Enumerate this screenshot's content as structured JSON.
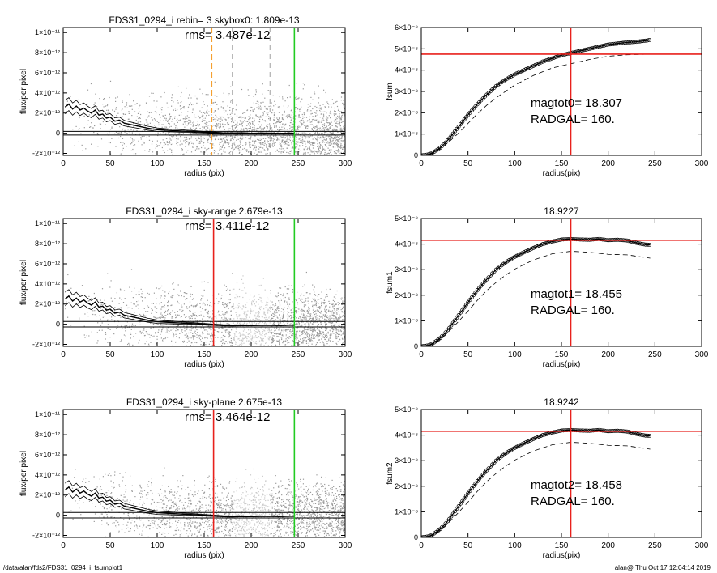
{
  "footer": {
    "left": "/data/alan/fds2/FDS31_0294_i_fsumplot1",
    "right": "alan@  Thu Oct 17 12:04:14 2019"
  },
  "colors": {
    "scatter": "#9a9a9a",
    "scatter_light": "#c8c8c8",
    "profile": "#000000",
    "red": "#e8211c",
    "green": "#22cc22",
    "orange": "#f5a031"
  },
  "chart_data": [
    {
      "type": "scatter",
      "panel": "left-1",
      "title": "FDS31_0294_i rebin= 3    skybox0:  1.809e-13",
      "annotation": "rms= 3.487e-12",
      "xlabel": "radius (pix)",
      "ylabel": "flux/per pixel",
      "xlim": [
        0,
        300
      ],
      "ylim": [
        -2.2e-12,
        1.05e-11
      ],
      "xticks": [
        0,
        50,
        100,
        150,
        200,
        250,
        300
      ],
      "yticks": [
        -2e-12,
        0,
        2e-12,
        4e-12,
        6e-12,
        8e-12,
        1e-11
      ],
      "yticklabels": [
        "-2×10⁻¹²",
        "0",
        "2×10⁻¹²",
        "4×10⁻¹²",
        "6×10⁻¹²",
        "8×10⁻¹²",
        "1×10⁻¹¹"
      ],
      "hlines": [
        1.8e-13,
        -1.8e-13
      ],
      "vlines": [
        {
          "x": 158,
          "color": "orange",
          "style": "dashed"
        },
        {
          "x": 180,
          "color": "gray",
          "style": "dashed"
        },
        {
          "x": 220,
          "color": "gray",
          "style": "dashed"
        },
        {
          "x": 246,
          "color": "green",
          "style": "solid"
        }
      ],
      "profile_r": [
        2,
        6,
        10,
        14,
        18,
        22,
        26,
        30,
        34,
        38,
        42,
        46,
        50,
        55,
        60,
        65,
        70,
        75,
        80,
        90,
        100,
        110,
        120,
        130,
        140,
        150,
        160,
        170,
        180,
        190,
        200,
        210,
        220,
        230,
        240,
        246
      ],
      "profile_f": [
        2.6e-12,
        2.9e-12,
        2.4e-12,
        2.7e-12,
        2.3e-12,
        2.5e-12,
        2.2e-12,
        2e-12,
        2.3e-12,
        1.8e-12,
        1.9e-12,
        1.5e-12,
        1.6e-12,
        1.2e-12,
        1.3e-12,
        1e-12,
        9e-13,
        8e-13,
        7e-13,
        5e-13,
        3.5e-13,
        3e-13,
        2.5e-13,
        2e-13,
        1.5e-13,
        1e-13,
        5e-14,
        0.0,
        0.0,
        2e-14,
        -2e-14,
        0.0,
        0.0,
        -2e-14,
        0.0,
        0.0
      ],
      "profile_err": 7e-13,
      "scatter_spread": 3.5e-12,
      "scatter_light_ranges": []
    },
    {
      "type": "line",
      "panel": "right-1",
      "title": "",
      "annotation_lines": [
        "magtot0=  18.307",
        "RADGAL=     160."
      ],
      "xlabel": "radius(pix)",
      "ylabel": "fsum",
      "xlim": [
        0,
        300
      ],
      "ylim": [
        0,
        6e-08
      ],
      "xticks": [
        0,
        50,
        100,
        150,
        200,
        250,
        300
      ],
      "yticks": [
        0,
        1e-08,
        2e-08,
        3e-08,
        4e-08,
        5e-08,
        6e-08
      ],
      "yticklabels": [
        "0",
        "1×10⁻⁸",
        "2×10⁻⁸",
        "3×10⁻⁸",
        "4×10⁻⁸",
        "5×10⁻⁸",
        "6×10⁻⁸"
      ],
      "vline": 160,
      "hline": 4.75e-08,
      "curve_r": [
        0,
        5,
        10,
        15,
        20,
        25,
        30,
        40,
        50,
        60,
        70,
        80,
        90,
        100,
        110,
        120,
        130,
        140,
        150,
        160,
        170,
        180,
        190,
        200,
        210,
        220,
        230,
        240,
        245
      ],
      "curve_f": [
        0,
        2e-10,
        8e-10,
        2e-09,
        3.5e-09,
        5.5e-09,
        8e-09,
        1.35e-08,
        1.9e-08,
        2.4e-08,
        2.85e-08,
        3.25e-08,
        3.55e-08,
        3.8e-08,
        4e-08,
        4.2e-08,
        4.4e-08,
        4.55e-08,
        4.7e-08,
        4.8e-08,
        4.9e-08,
        5e-08,
        5.1e-08,
        5.2e-08,
        5.25e-08,
        5.3e-08,
        5.33e-08,
        5.38e-08,
        5.42e-08
      ],
      "dashed_r": [
        0,
        10,
        20,
        30,
        40,
        50,
        60,
        70,
        80,
        90,
        100,
        120,
        140,
        160,
        180,
        200,
        220,
        245
      ],
      "dashed_f": [
        0,
        5e-10,
        3e-09,
        6.5e-09,
        1.05e-08,
        1.5e-08,
        1.95e-08,
        2.35e-08,
        2.7e-08,
        3e-08,
        3.3e-08,
        3.75e-08,
        4.1e-08,
        4.3e-08,
        4.5e-08,
        4.65e-08,
        4.72e-08,
        4.75e-08
      ]
    },
    {
      "type": "scatter",
      "panel": "left-2",
      "title": "FDS31_0294_i sky-range  2.679e-13",
      "annotation": "rms= 3.411e-12",
      "xlabel": "radius (pix)",
      "ylabel": "flux/per pixel",
      "xlim": [
        0,
        300
      ],
      "ylim": [
        -2.2e-12,
        1.05e-11
      ],
      "xticks": [
        0,
        50,
        100,
        150,
        200,
        250,
        300
      ],
      "yticks": [
        -2e-12,
        0,
        2e-12,
        4e-12,
        6e-12,
        8e-12,
        1e-11
      ],
      "yticklabels": [
        "-2×10⁻¹²",
        "0",
        "2×10⁻¹²",
        "4×10⁻¹²",
        "6×10⁻¹²",
        "8×10⁻¹²",
        "1×10⁻¹¹"
      ],
      "hlines": [
        2.7e-13,
        -2.7e-13
      ],
      "vlines": [
        {
          "x": 160,
          "color": "red",
          "style": "solid"
        },
        {
          "x": 246,
          "color": "green",
          "style": "solid"
        }
      ],
      "profile_r": [
        2,
        6,
        10,
        14,
        18,
        22,
        26,
        30,
        34,
        38,
        42,
        46,
        50,
        55,
        60,
        65,
        70,
        75,
        80,
        90,
        100,
        110,
        120,
        130,
        140,
        150,
        160,
        170,
        180,
        190,
        200,
        210,
        220,
        230,
        240,
        246
      ],
      "profile_f": [
        2.5e-12,
        2.8e-12,
        2.3e-12,
        2.6e-12,
        2.2e-12,
        2.4e-12,
        2.1e-12,
        1.9e-12,
        2.2e-12,
        1.7e-12,
        1.8e-12,
        1.4e-12,
        1.5e-12,
        1.1e-12,
        1.2e-12,
        9e-13,
        8e-13,
        7e-13,
        6e-13,
        4e-13,
        2.5e-13,
        2e-13,
        1.5e-13,
        1e-13,
        5e-14,
        0.0,
        -5e-14,
        -1e-13,
        -1.2e-13,
        -1e-13,
        -1.2e-13,
        -1e-13,
        -1e-13,
        -1.2e-13,
        -1e-13,
        -1e-13
      ],
      "profile_err": 7e-13,
      "scatter_spread": 3.4e-12,
      "scatter_light_ranges": [
        [
          180,
          220
        ]
      ]
    },
    {
      "type": "line",
      "panel": "right-2",
      "title": "18.9227",
      "annotation_lines": [
        "magtot1=  18.455",
        "RADGAL=     160."
      ],
      "xlabel": "radius(pix)",
      "ylabel": "fsum1",
      "xlim": [
        0,
        300
      ],
      "ylim": [
        0,
        5e-08
      ],
      "xticks": [
        0,
        50,
        100,
        150,
        200,
        250,
        300
      ],
      "yticks": [
        0,
        1e-08,
        2e-08,
        3e-08,
        4e-08,
        5e-08
      ],
      "yticklabels": [
        "0",
        "1×10⁻⁸",
        "2×10⁻⁸",
        "3×10⁻⁸",
        "4×10⁻⁸",
        "5×10⁻⁸"
      ],
      "vline": 160,
      "hline": 4.15e-08,
      "curve_r": [
        0,
        5,
        10,
        15,
        20,
        25,
        30,
        40,
        50,
        60,
        70,
        80,
        90,
        100,
        110,
        120,
        130,
        140,
        150,
        160,
        170,
        180,
        190,
        200,
        210,
        220,
        230,
        240,
        245
      ],
      "curve_f": [
        0,
        2e-10,
        7e-10,
        1.8e-09,
        3.2e-09,
        5e-09,
        7.2e-09,
        1.22e-08,
        1.72e-08,
        2.2e-08,
        2.62e-08,
        3e-08,
        3.28e-08,
        3.5e-08,
        3.68e-08,
        3.85e-08,
        4e-08,
        4.1e-08,
        4.18e-08,
        4.2e-08,
        4.18e-08,
        4.17e-08,
        4.2e-08,
        4.15e-08,
        4.17e-08,
        4.14e-08,
        4.05e-08,
        3.98e-08,
        3.97e-08
      ],
      "dashed_r": [
        0,
        10,
        20,
        30,
        40,
        50,
        60,
        70,
        80,
        90,
        100,
        120,
        140,
        160,
        180,
        200,
        220,
        245
      ],
      "dashed_f": [
        0,
        5e-10,
        2.7e-09,
        6e-09,
        9.8e-09,
        1.38e-08,
        1.8e-08,
        2.18e-08,
        2.5e-08,
        2.78e-08,
        3.02e-08,
        3.38e-08,
        3.62e-08,
        3.72e-08,
        3.68e-08,
        3.6e-08,
        3.58e-08,
        3.45e-08
      ]
    },
    {
      "type": "scatter",
      "panel": "left-3",
      "title": "FDS31_0294_i sky-plane  2.675e-13",
      "annotation": "rms= 3.464e-12",
      "xlabel": "radius (pix)",
      "ylabel": "flux/per pixel",
      "xlim": [
        0,
        300
      ],
      "ylim": [
        -2.2e-12,
        1.05e-11
      ],
      "xticks": [
        0,
        50,
        100,
        150,
        200,
        250,
        300
      ],
      "yticks": [
        -2e-12,
        0,
        2e-12,
        4e-12,
        6e-12,
        8e-12,
        1e-11
      ],
      "yticklabels": [
        "-2×10⁻¹²",
        "0",
        "2×10⁻¹²",
        "4×10⁻¹²",
        "6×10⁻¹²",
        "8×10⁻¹²",
        "1×10⁻¹¹"
      ],
      "hlines": [
        2.7e-13,
        -2.7e-13
      ],
      "vlines": [
        {
          "x": 160,
          "color": "red",
          "style": "solid"
        },
        {
          "x": 246,
          "color": "green",
          "style": "solid"
        }
      ],
      "profile_r": [
        2,
        6,
        10,
        14,
        18,
        22,
        26,
        30,
        34,
        38,
        42,
        46,
        50,
        55,
        60,
        65,
        70,
        75,
        80,
        90,
        100,
        110,
        120,
        130,
        140,
        150,
        160,
        170,
        180,
        190,
        200,
        210,
        220,
        230,
        240,
        246
      ],
      "profile_f": [
        2.5e-12,
        2.8e-12,
        2.3e-12,
        2.6e-12,
        2.2e-12,
        2.4e-12,
        2.1e-12,
        1.9e-12,
        2.2e-12,
        1.7e-12,
        1.8e-12,
        1.4e-12,
        1.5e-12,
        1.1e-12,
        1.2e-12,
        9e-13,
        8e-13,
        7e-13,
        6e-13,
        4e-13,
        2.5e-13,
        2e-13,
        1.5e-13,
        1e-13,
        5e-14,
        0.0,
        -5e-14,
        -1e-13,
        -1.2e-13,
        -1e-13,
        -1.2e-13,
        -1e-13,
        -1e-13,
        -1.2e-13,
        -1e-13,
        -1e-13
      ],
      "profile_err": 7e-13,
      "scatter_spread": 3.4e-12,
      "scatter_light_ranges": [
        [
          180,
          220
        ]
      ]
    },
    {
      "type": "line",
      "panel": "right-3",
      "title": "18.9242",
      "annotation_lines": [
        "magtot2=  18.458",
        "RADGAL=     160."
      ],
      "xlabel": "radius(pix)",
      "ylabel": "fsum2",
      "xlim": [
        0,
        300
      ],
      "ylim": [
        0,
        5e-08
      ],
      "xticks": [
        0,
        50,
        100,
        150,
        200,
        250,
        300
      ],
      "yticks": [
        0,
        1e-08,
        2e-08,
        3e-08,
        4e-08,
        5e-08
      ],
      "yticklabels": [
        "0",
        "1×10⁻⁸",
        "2×10⁻⁸",
        "3×10⁻⁸",
        "4×10⁻⁸",
        "5×10⁻⁸"
      ],
      "vline": 160,
      "hline": 4.15e-08,
      "curve_r": [
        0,
        5,
        10,
        15,
        20,
        25,
        30,
        40,
        50,
        60,
        70,
        80,
        90,
        100,
        110,
        120,
        130,
        140,
        150,
        160,
        170,
        180,
        190,
        200,
        210,
        220,
        230,
        240,
        245
      ],
      "curve_f": [
        0,
        2e-10,
        7e-10,
        1.8e-09,
        3.2e-09,
        5e-09,
        7.2e-09,
        1.22e-08,
        1.72e-08,
        2.2e-08,
        2.62e-08,
        3e-08,
        3.28e-08,
        3.5e-08,
        3.68e-08,
        3.85e-08,
        4e-08,
        4.1e-08,
        4.18e-08,
        4.2e-08,
        4.18e-08,
        4.17e-08,
        4.2e-08,
        4.15e-08,
        4.17e-08,
        4.14e-08,
        4.05e-08,
        3.98e-08,
        3.97e-08
      ],
      "dashed_r": [
        0,
        10,
        20,
        30,
        40,
        50,
        60,
        70,
        80,
        90,
        100,
        120,
        140,
        160,
        180,
        200,
        220,
        245
      ],
      "dashed_f": [
        0,
        5e-10,
        2.7e-09,
        6e-09,
        9.8e-09,
        1.38e-08,
        1.8e-08,
        2.18e-08,
        2.5e-08,
        2.78e-08,
        3.02e-08,
        3.38e-08,
        3.62e-08,
        3.72e-08,
        3.68e-08,
        3.6e-08,
        3.58e-08,
        3.45e-08
      ]
    }
  ]
}
